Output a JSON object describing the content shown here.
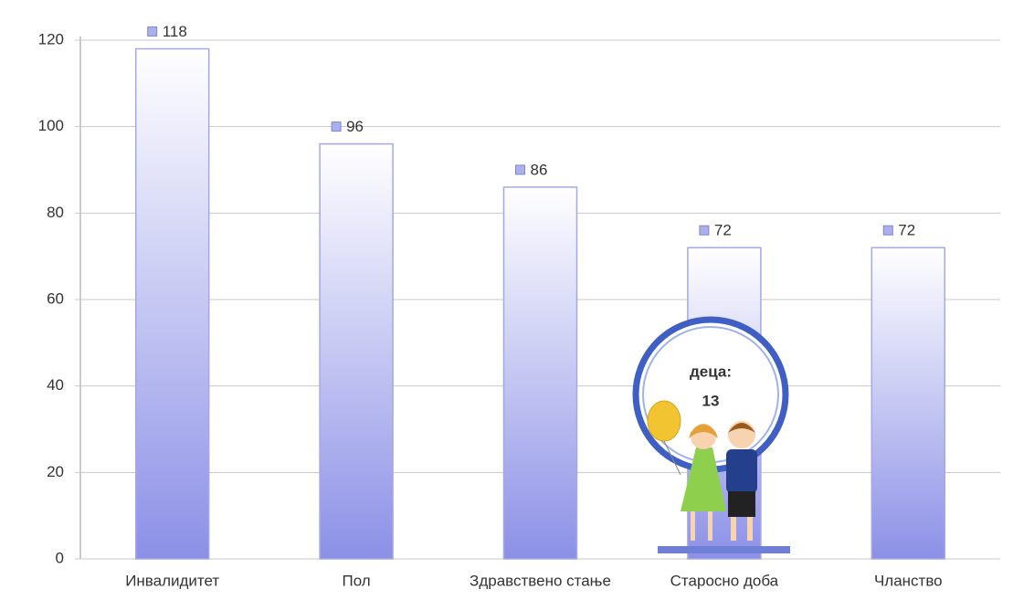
{
  "chart_data": {
    "type": "bar",
    "categories": [
      "Инвалидитет",
      "Пол",
      "Здравствено стање",
      "Старосно доба",
      "Чланство"
    ],
    "values": [
      118,
      96,
      86,
      72,
      72
    ],
    "color": "#8c90e6",
    "ylim": [
      0,
      120
    ],
    "yticks": [
      0,
      20,
      40,
      60,
      80,
      100,
      120
    ],
    "grid": true,
    "annotation": {
      "label": "деца:",
      "value": 13
    }
  }
}
